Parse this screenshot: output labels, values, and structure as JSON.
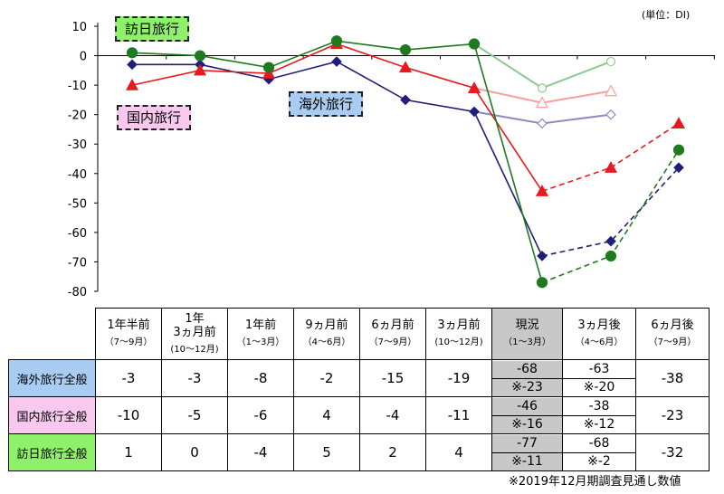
{
  "unit_label": "(単位：DI)",
  "footnote": "※2019年12月期調査見通し数値",
  "tags": {
    "inbound": "訪日旅行",
    "domestic": "国内旅行",
    "overseas": "海外旅行"
  },
  "colors": {
    "overseas": "#1f1f7a",
    "domestic": "#e8191f",
    "inbound": "#1e7a1e",
    "overseas_light": "#8b8bc2",
    "domestic_light": "#f4a0a0",
    "inbound_light": "#8fc98f",
    "tag_inbound_bg": "#8ff06a",
    "tag_domestic_bg": "#f8c8ef",
    "tag_overseas_bg": "#a9cdf2",
    "row_overseas_bg": "#a9cdf2",
    "row_domestic_bg": "#f8c8ef",
    "row_inbound_bg": "#8ff06a"
  },
  "chart_data": {
    "type": "line",
    "ylim": [
      -80,
      10
    ],
    "yticks": [
      10,
      0,
      -10,
      -20,
      -30,
      -40,
      -50,
      -60,
      -70,
      -80
    ],
    "categories": [
      "1年半前",
      "1年3ヵ月前",
      "1年前",
      "9ヵ月前",
      "6ヵ月前",
      "3ヵ月前",
      "現況",
      "3ヵ月後",
      "6ヵ月後"
    ],
    "series": [
      {
        "name": "海外旅行全般",
        "key": "overseas",
        "values": [
          -3,
          -3,
          -8,
          -2,
          -15,
          -19,
          -68,
          -63,
          -38
        ],
        "prev_forecast": [
          -23,
          -20
        ],
        "marker": "diamond"
      },
      {
        "name": "国内旅行全般",
        "key": "domestic",
        "values": [
          -10,
          -5,
          -6,
          4,
          -4,
          -11,
          -46,
          -38,
          -23
        ],
        "prev_forecast": [
          -16,
          -12
        ],
        "marker": "triangle"
      },
      {
        "name": "訪日旅行全般",
        "key": "inbound",
        "values": [
          1,
          0,
          -4,
          5,
          2,
          4,
          -77,
          -68,
          -32
        ],
        "prev_forecast": [
          -11,
          -2
        ],
        "marker": "circle"
      }
    ]
  },
  "table": {
    "periods": [
      {
        "label": "1年半前",
        "sub": "（7～9月）"
      },
      {
        "label": "1年\n3ヵ月前",
        "sub": "(10～12月)"
      },
      {
        "label": "1年前",
        "sub": "（1～3月）"
      },
      {
        "label": "9ヵ月前",
        "sub": "（4～6月）"
      },
      {
        "label": "6ヵ月前",
        "sub": "（7～9月）"
      },
      {
        "label": "3ヵ月前",
        "sub": "(10～12月)"
      },
      {
        "label": "現況",
        "sub": "（1～3月）"
      },
      {
        "label": "3ヵ月後",
        "sub": "（4～6月）"
      },
      {
        "label": "6ヵ月後",
        "sub": "（7～9月）"
      }
    ],
    "rows": [
      {
        "label": "海外旅行全般",
        "key": "overseas",
        "cells": [
          "-3",
          "-3",
          "-8",
          "-2",
          "-15",
          "-19",
          "-68",
          "-63",
          "-38"
        ],
        "notes": [
          "※-23",
          "※-20"
        ]
      },
      {
        "label": "国内旅行全般",
        "key": "domestic",
        "cells": [
          "-10",
          "-5",
          "-6",
          "4",
          "-4",
          "-11",
          "-46",
          "-38",
          "-23"
        ],
        "notes": [
          "※-16",
          "※-12"
        ]
      },
      {
        "label": "訪日旅行全般",
        "key": "inbound",
        "cells": [
          "1",
          "0",
          "-4",
          "5",
          "2",
          "4",
          "-77",
          "-68",
          "-32"
        ],
        "notes": [
          "※-11",
          "※-2"
        ]
      }
    ]
  }
}
